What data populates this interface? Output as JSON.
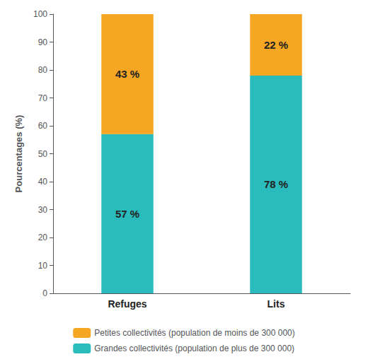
{
  "chart_data": {
    "type": "bar",
    "stacked": true,
    "categories": [
      "Refuges",
      "Lits"
    ],
    "series": [
      {
        "name": "Grandes collectivités (population de plus de 300 000)",
        "color": "#2abcbc",
        "values": [
          57,
          78
        ],
        "value_labels": [
          "57 %",
          "78 %"
        ]
      },
      {
        "name": "Petites collectivités (population de moins de 300 000)",
        "color": "#f5a623",
        "values": [
          43,
          22
        ],
        "value_labels": [
          "43 %",
          "22 %"
        ]
      }
    ],
    "ylabel": "Pourcentages (%)",
    "ylim": [
      0,
      100
    ],
    "yticks": [
      0,
      10,
      20,
      30,
      40,
      50,
      60,
      70,
      80,
      90,
      100
    ],
    "data_labels": true,
    "legend": "bottom",
    "grid": false
  }
}
